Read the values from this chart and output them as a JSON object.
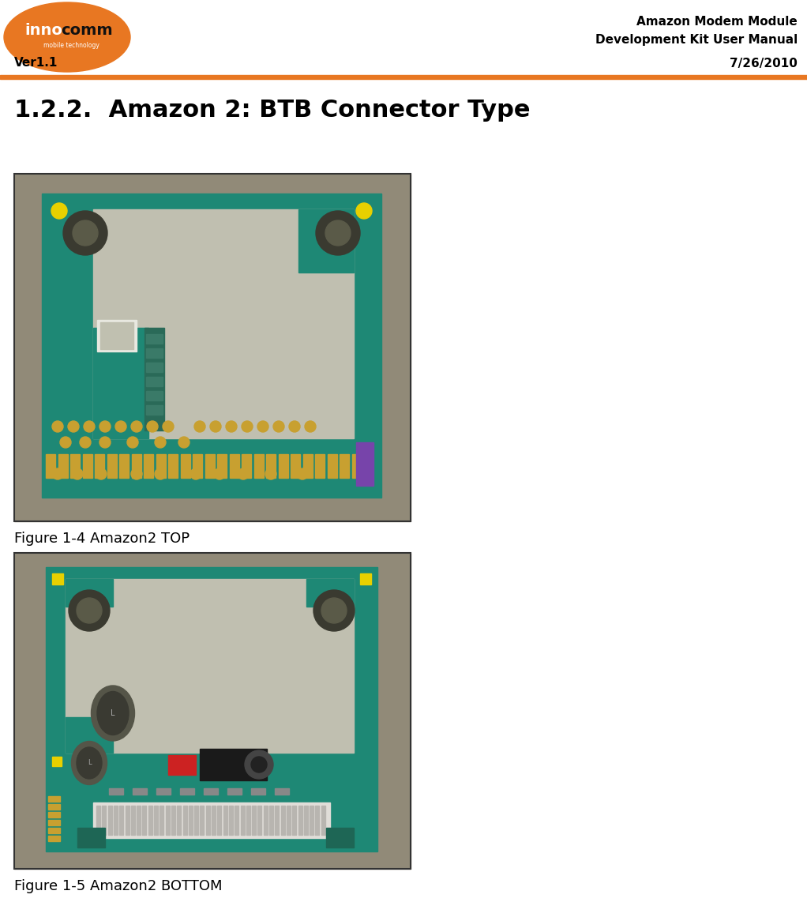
{
  "page_width": 10.22,
  "page_height": 11.42,
  "dpi": 100,
  "bg_color": "#ffffff",
  "header": {
    "logo_bg_color": "#E87722",
    "title_line1": "Amazon Modem Module",
    "title_line2": "Development Kit User Manual",
    "title_line3": "7/26/2010",
    "version_text": "Ver1.1",
    "text_color": "#000000",
    "header_bg": "#ffffff"
  },
  "section_title": "1.2.2.  Amazon 2: BTB Connector Type",
  "section_title_fontsize": 22,
  "figure1_caption": "Figure 1-4 Amazon2 TOP",
  "figure2_caption": "Figure 1-5 Amazon2 BOTTOM",
  "figure_caption_fontsize": 13,
  "orange_bar_color": "#E87722",
  "pcb_teal": "#1e8875",
  "pcb_bg": "#a09880",
  "pcb_shield_silver": "#c0bfb0",
  "pcb_gold": "#c8a030",
  "pcb_dark_hole": "#3a3a30",
  "pcb_yellow_led": "#e8d000",
  "pcb_purple": "#8844aa",
  "pcb_red": "#cc2222",
  "pcb_dark_comp": "#555550",
  "pcb_connector_white": "#d0d0c8"
}
